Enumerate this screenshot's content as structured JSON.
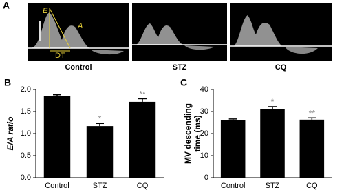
{
  "panel_a": {
    "label": "A",
    "annotations": [
      "E",
      "A",
      "DT"
    ],
    "captions": [
      "Control",
      "STZ",
      "CQ"
    ]
  },
  "chart_data": [
    {
      "type": "bar",
      "panel": "B",
      "ylabel": "E/A ratio",
      "categories": [
        "Control",
        "STZ",
        "CQ"
      ],
      "values": [
        1.85,
        1.17,
        1.72
      ],
      "errors": [
        0.03,
        0.06,
        0.07
      ],
      "significance": [
        null,
        "*",
        "**"
      ],
      "color": "#000000",
      "ylim": [
        0,
        2.0
      ],
      "yticks": [
        {
          "value": 0,
          "label": "0.0"
        },
        {
          "value": 0.5,
          "label": "0.5"
        },
        {
          "value": 1.0,
          "label": "1.0"
        },
        {
          "value": 1.5,
          "label": "1.5"
        },
        {
          "value": 2.0,
          "label": "2.0"
        }
      ]
    },
    {
      "type": "bar",
      "panel": "C",
      "ylabel": [
        "MV descending",
        "time (ms)"
      ],
      "categories": [
        "Control",
        "STZ",
        "CQ"
      ],
      "values": [
        26,
        31,
        26.3
      ],
      "errors": [
        0.6,
        1.2,
        0.8
      ],
      "significance": [
        null,
        "*",
        "**"
      ],
      "color": "#000000",
      "ylim": [
        0,
        40
      ],
      "yticks": [
        0,
        10,
        20,
        30,
        40
      ]
    }
  ]
}
